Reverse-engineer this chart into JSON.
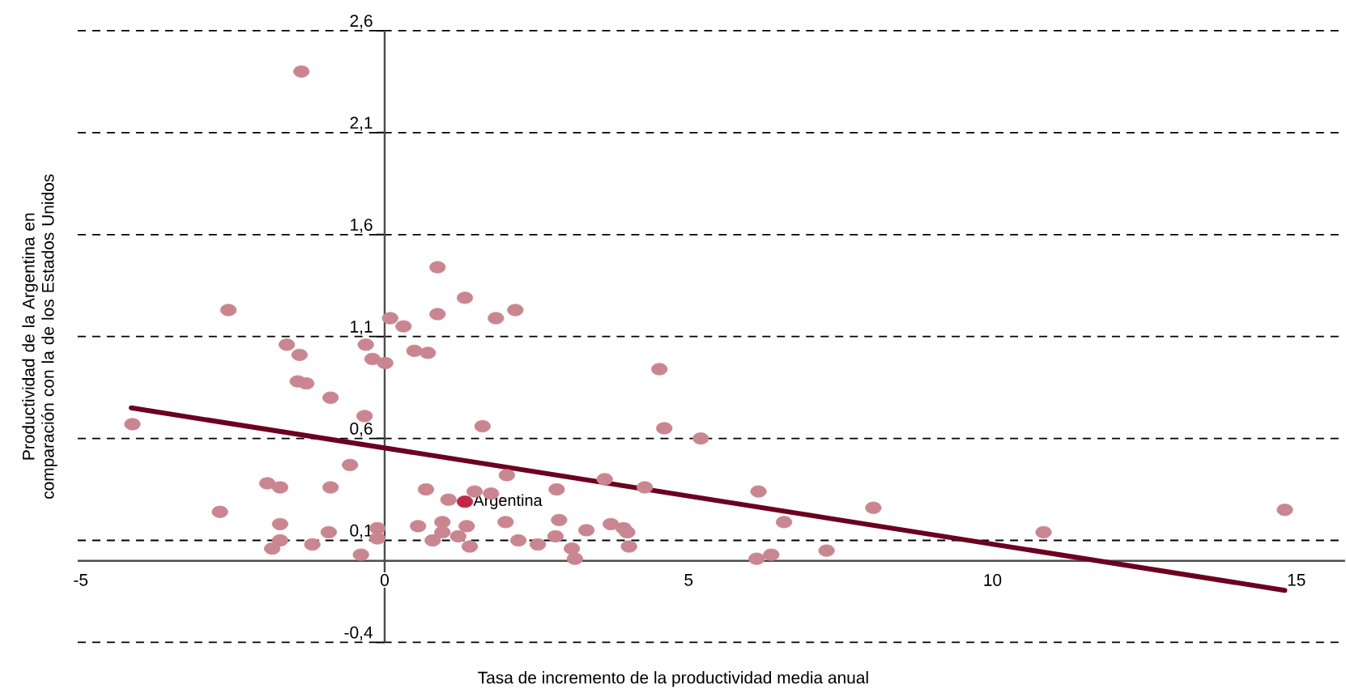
{
  "chart_data": {
    "type": "scatter",
    "xlabel": "Tasa de incremento de la productividad media anual",
    "ylabel": "Productividad de la Argentina en comparación con la de los Estados Unidos",
    "xlim": [
      -5.05,
      15.8
    ],
    "ylim": [
      -0.4,
      2.6
    ],
    "xticks": [
      -5,
      0,
      5,
      10,
      15
    ],
    "yticks": [
      {
        "value": 2.6,
        "label": "2,6"
      },
      {
        "value": 2.1,
        "label": "2,1"
      },
      {
        "value": 1.6,
        "label": "1,6"
      },
      {
        "value": 1.1,
        "label": "1,1"
      },
      {
        "value": 0.6,
        "label": "0,6"
      },
      {
        "value": 0.1,
        "label": "0,1"
      },
      {
        "value": -0.4,
        "label": "-0,4"
      }
    ],
    "grid": "y",
    "marker": "circle",
    "series": [
      {
        "color": "#c98690",
        "x": [
          -1.37,
          -2.57,
          0.87,
          1.32,
          0.87,
          1.83,
          2.15,
          0.09,
          0.31,
          -0.31,
          0.49,
          0.71,
          -1.61,
          -1.4,
          -0.2,
          0.01,
          -1.43,
          -1.29,
          -0.89,
          4.52,
          -4.15,
          -0.33,
          1.61,
          4.6,
          5.2,
          -0.57,
          2.01,
          -1.93,
          -1.72,
          -0.89,
          0.68,
          1.48,
          1.75,
          2.83,
          3.62,
          4.28,
          6.15,
          -2.71,
          1.05,
          -1.72,
          -0.12,
          0.55,
          0.95,
          1.35,
          1.99,
          2.87,
          3.32,
          3.72,
          3.93,
          -1.72,
          -0.92,
          -0.12,
          -1.19,
          -1.85,
          -0.39,
          0.79,
          0.95,
          1.21,
          1.4,
          2.2,
          2.52,
          2.81,
          3.08,
          3.13,
          3.99,
          4.02,
          6.57,
          8.04,
          7.27,
          6.12,
          6.36,
          10.84,
          14.81
        ],
        "values": [
          2.4,
          1.23,
          1.44,
          1.29,
          1.21,
          1.19,
          1.23,
          1.19,
          1.15,
          1.06,
          1.03,
          1.02,
          1.06,
          1.01,
          0.99,
          0.97,
          0.88,
          0.87,
          0.8,
          0.94,
          0.67,
          0.71,
          0.66,
          0.65,
          0.6,
          0.47,
          0.42,
          0.38,
          0.36,
          0.36,
          0.35,
          0.34,
          0.33,
          0.35,
          0.4,
          0.36,
          0.34,
          0.24,
          0.3,
          0.18,
          0.16,
          0.17,
          0.19,
          0.17,
          0.19,
          0.2,
          0.15,
          0.18,
          0.16,
          0.1,
          0.14,
          0.11,
          0.08,
          0.06,
          0.03,
          0.1,
          0.14,
          0.12,
          0.07,
          0.1,
          0.08,
          0.12,
          0.06,
          0.01,
          0.14,
          0.07,
          0.19,
          0.26,
          0.05,
          0.01,
          0.03,
          0.14,
          0.25
        ]
      },
      {
        "name": "Argentina",
        "color": "#be2a45",
        "x": [
          1.32
        ],
        "values": [
          0.29
        ]
      },
      {
        "type": "line",
        "marker": "none",
        "color": "#6b0020",
        "x": [
          -4.17,
          14.81
        ],
        "values": [
          0.75,
          -0.145
        ]
      }
    ]
  }
}
